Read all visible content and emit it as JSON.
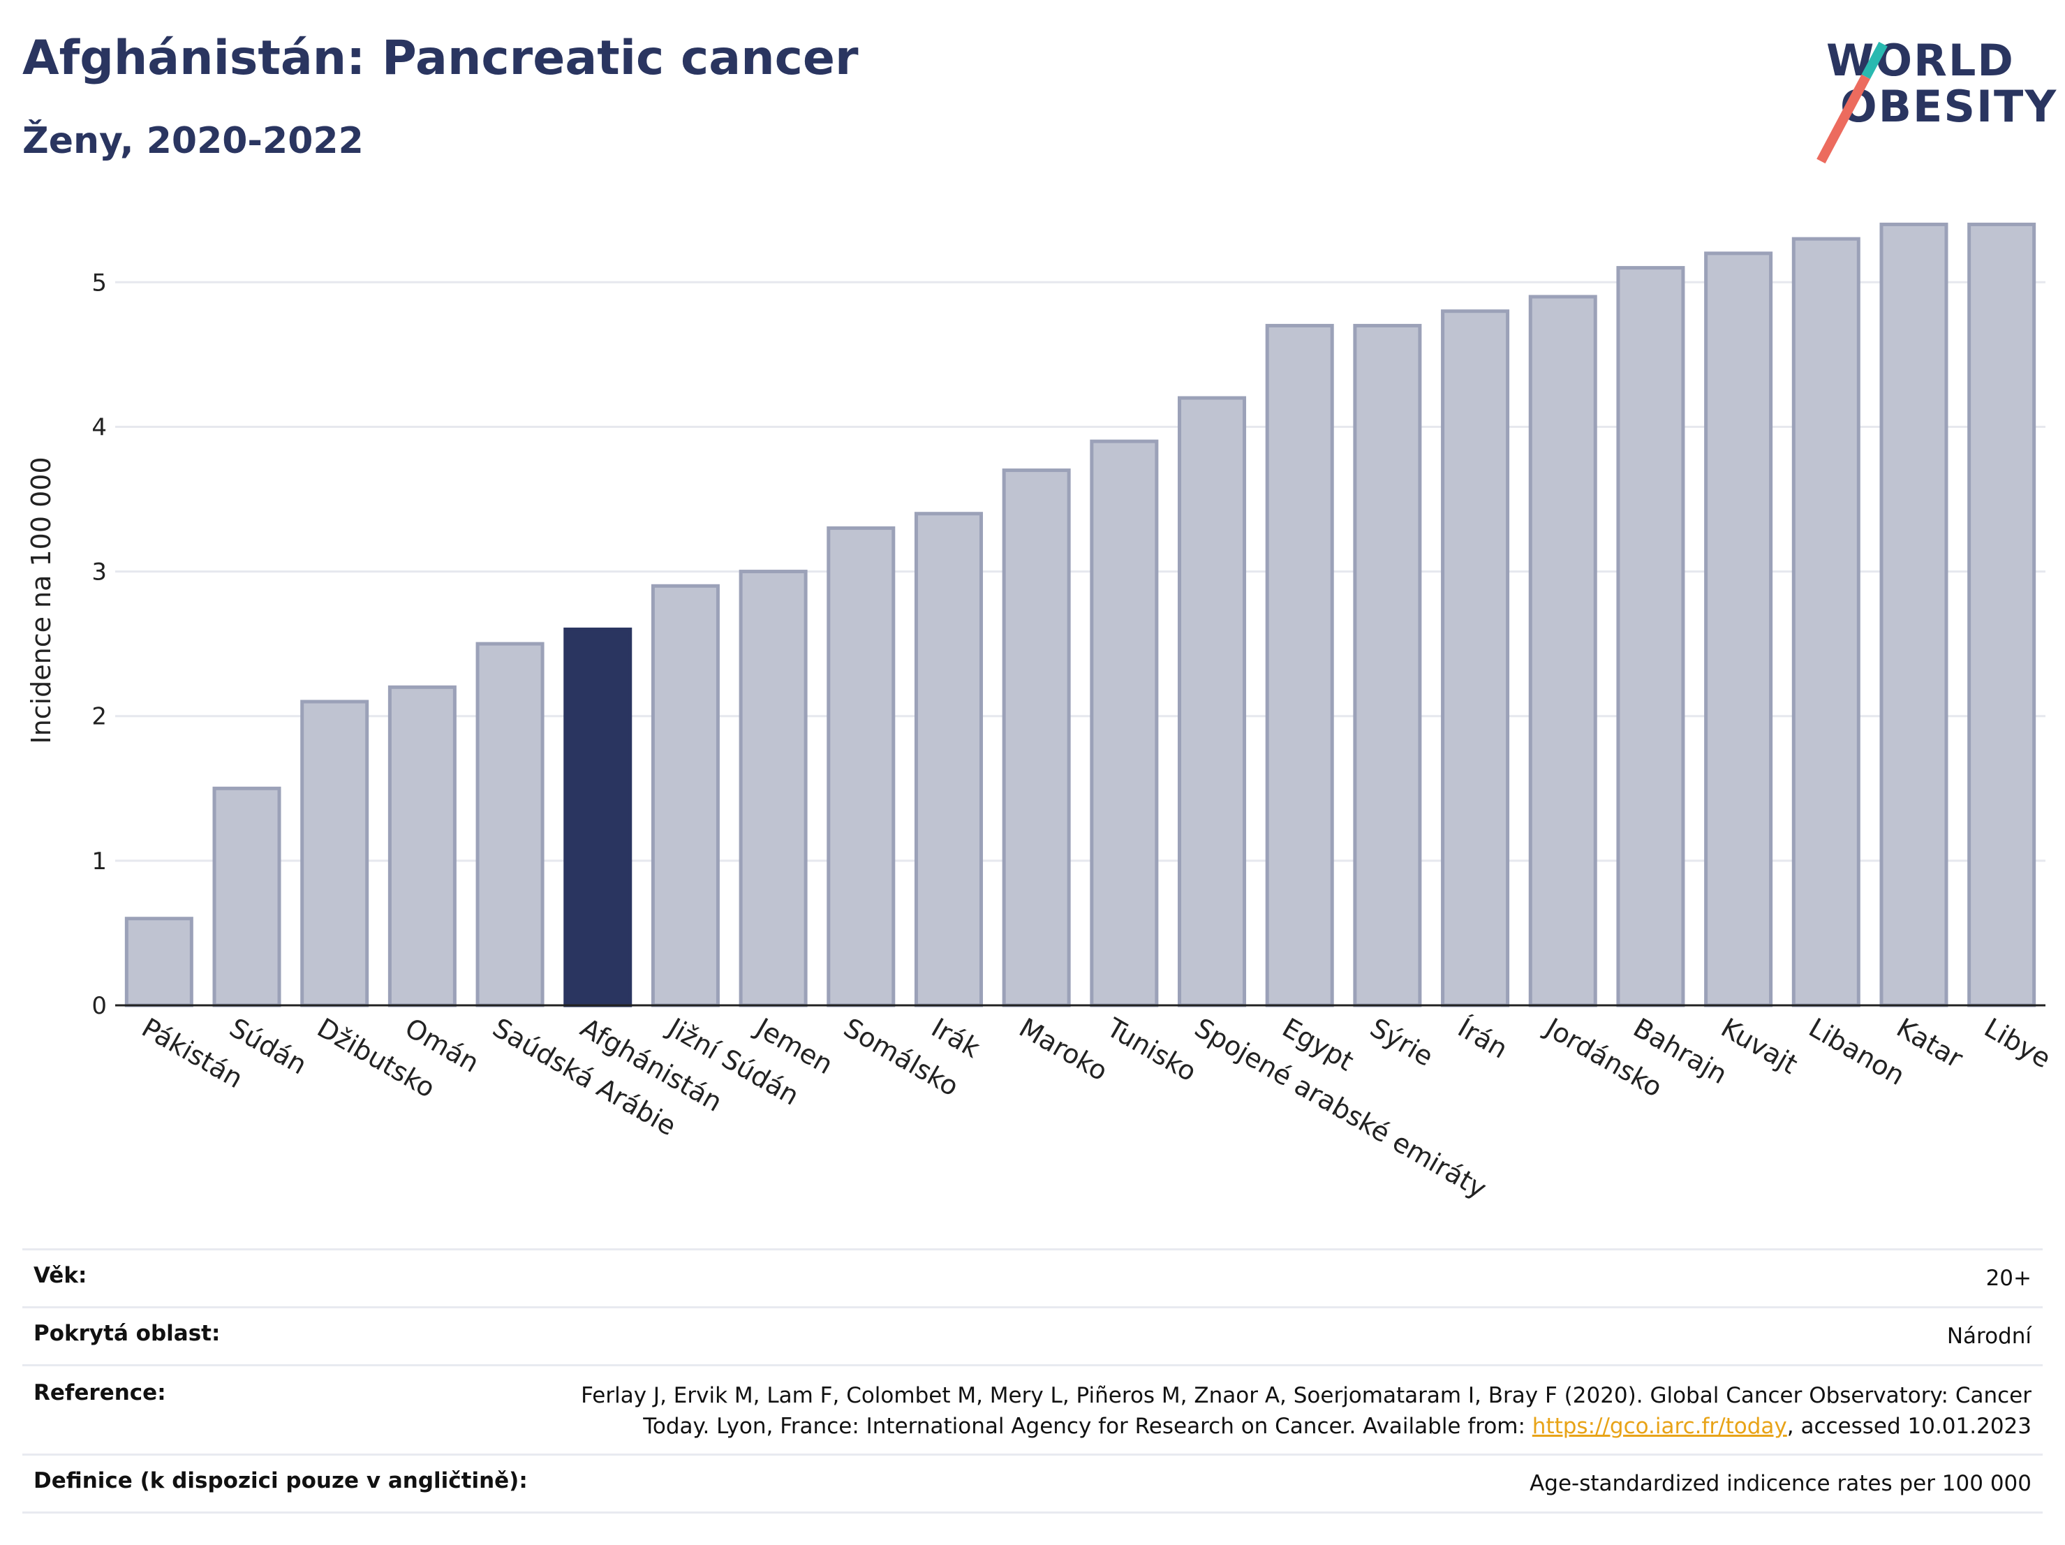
{
  "header": {
    "title": "Afghánistán: Pancreatic cancer",
    "subtitle": "Ženy, 2020-2022"
  },
  "logo": {
    "line1": "WORLD",
    "line2": "OBESITY",
    "colors": {
      "teal": "#29b9b0",
      "red": "#ec6b5e"
    }
  },
  "chart_data": {
    "type": "bar",
    "title": "Afghánistán: Pancreatic cancer",
    "ylabel": "Incidence na 100 000",
    "xlabel": "",
    "ylim": [
      0,
      5.6
    ],
    "yticks": [
      0,
      1,
      2,
      3,
      4,
      5
    ],
    "grid": true,
    "highlight": "Afghánistán",
    "colors": {
      "bar": "#bfc3d1",
      "bar_border": "#9ba1b8",
      "highlight": "#2a3560"
    },
    "categories": [
      "Pákistán",
      "Súdán",
      "Džibutsko",
      "Omán",
      "Saúdská Arábie",
      "Afghánistán",
      "Jižní Súdán",
      "Jemen",
      "Somálsko",
      "Irák",
      "Maroko",
      "Tunisko",
      "Spojené arabské emiráty",
      "Egypt",
      "Sýrie",
      "Írán",
      "Jordánsko",
      "Bahrajn",
      "Kuvajt",
      "Libanon",
      "Katar",
      "Libye"
    ],
    "values": [
      0.6,
      1.5,
      2.1,
      2.2,
      2.5,
      2.6,
      2.9,
      3.0,
      3.3,
      3.4,
      3.7,
      3.9,
      4.2,
      4.7,
      4.7,
      4.8,
      4.9,
      5.1,
      5.2,
      5.3,
      5.4,
      5.4
    ]
  },
  "meta": {
    "age_label": "Věk:",
    "age_value": "20+",
    "area_label": "Pokrytá oblast:",
    "area_value": "Národní",
    "ref_label": "Reference:",
    "ref_line1": "Ferlay J, Ervik M, Lam F, Colombet M, Mery L, Piñeros M, Znaor A, Soerjomataram I, Bray F (2020). Global Cancer Observatory: Cancer",
    "ref_line2_pre": "Today. Lyon, France: International Agency for Research on Cancer. Available from: ",
    "ref_link": "https://gco.iarc.fr/today",
    "ref_line2_post": ", accessed 10.01.2023",
    "def_label": "Definice (k dispozici pouze v angličtině):",
    "def_value": "Age-standardized indicence rates per 100 000"
  }
}
